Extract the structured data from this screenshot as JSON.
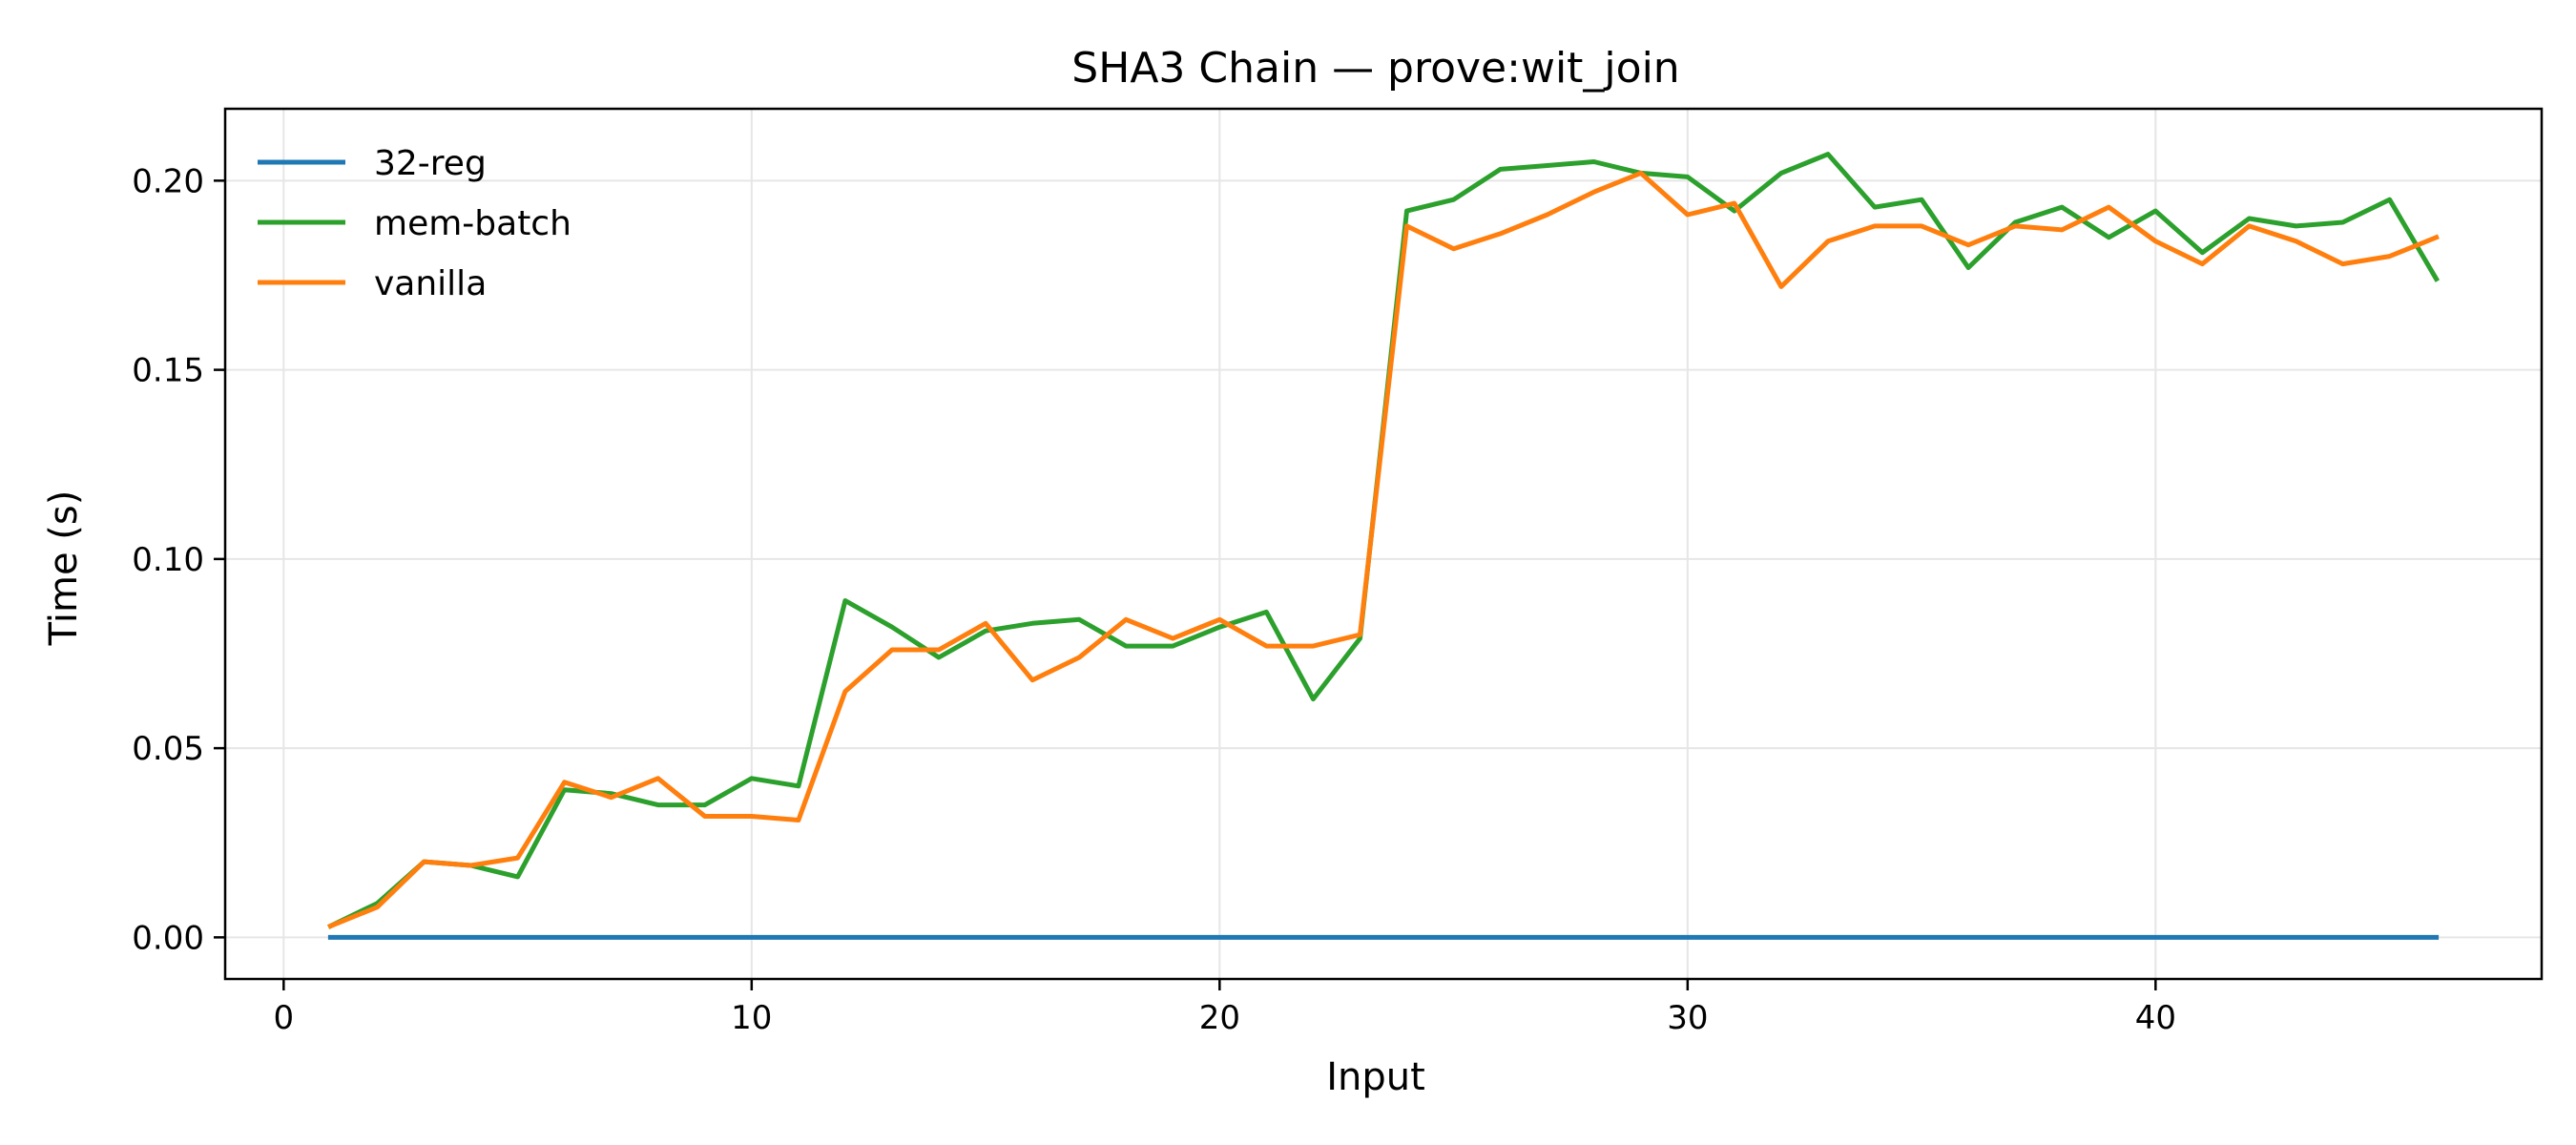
{
  "chart_data": {
    "type": "line",
    "title": "SHA3 Chain — prove:wit_join",
    "xlabel": "Input",
    "ylabel": "Time (s)",
    "xlim": [
      -1.25,
      48.25
    ],
    "ylim": [
      -0.011,
      0.219
    ],
    "xticks": [
      0,
      10,
      20,
      30,
      40
    ],
    "xtick_labels": [
      "0",
      "10",
      "20",
      "30",
      "40"
    ],
    "yticks": [
      0.0,
      0.05,
      0.1,
      0.15,
      0.2
    ],
    "ytick_labels": [
      "0.00",
      "0.05",
      "0.10",
      "0.15",
      "0.20"
    ],
    "grid": true,
    "legend_position": "top-left",
    "x": [
      1,
      2,
      3,
      4,
      5,
      6,
      7,
      8,
      9,
      10,
      11,
      12,
      13,
      14,
      15,
      16,
      17,
      18,
      19,
      20,
      21,
      22,
      23,
      24,
      25,
      26,
      27,
      28,
      29,
      30,
      31,
      32,
      33,
      34,
      35,
      36,
      37,
      38,
      39,
      40,
      41,
      42,
      43,
      44,
      45,
      46
    ],
    "series": [
      {
        "name": "32-reg",
        "color": "#1f77b4",
        "values": [
          0,
          0,
          0,
          0,
          0,
          0,
          0,
          0,
          0,
          0,
          0,
          0,
          0,
          0,
          0,
          0,
          0,
          0,
          0,
          0,
          0,
          0,
          0,
          0,
          0,
          0,
          0,
          0,
          0,
          0,
          0,
          0,
          0,
          0,
          0,
          0,
          0,
          0,
          0,
          0,
          0,
          0,
          0,
          0,
          0,
          0
        ]
      },
      {
        "name": "mem-batch",
        "color": "#2ca02c",
        "values": [
          0.003,
          0.009,
          0.02,
          0.019,
          0.016,
          0.039,
          0.038,
          0.035,
          0.035,
          0.042,
          0.04,
          0.089,
          0.082,
          0.074,
          0.081,
          0.083,
          0.084,
          0.077,
          0.077,
          0.082,
          0.086,
          0.063,
          0.079,
          0.192,
          0.195,
          0.203,
          0.204,
          0.205,
          0.202,
          0.201,
          0.192,
          0.202,
          0.207,
          0.193,
          0.195,
          0.177,
          0.189,
          0.193,
          0.185,
          0.192,
          0.181,
          0.19,
          0.188,
          0.189,
          0.195,
          0.174
        ]
      },
      {
        "name": "vanilla",
        "color": "#ff7f0e",
        "values": [
          0.003,
          0.008,
          0.02,
          0.019,
          0.021,
          0.041,
          0.037,
          0.042,
          0.032,
          0.032,
          0.031,
          0.065,
          0.076,
          0.076,
          0.083,
          0.068,
          0.074,
          0.084,
          0.079,
          0.084,
          0.077,
          0.077,
          0.08,
          0.188,
          0.182,
          0.186,
          0.191,
          0.197,
          0.202,
          0.191,
          0.194,
          0.172,
          0.184,
          0.188,
          0.188,
          0.183,
          0.188,
          0.187,
          0.193,
          0.184,
          0.178,
          0.188,
          0.184,
          0.178,
          0.18,
          0.185
        ]
      }
    ]
  }
}
